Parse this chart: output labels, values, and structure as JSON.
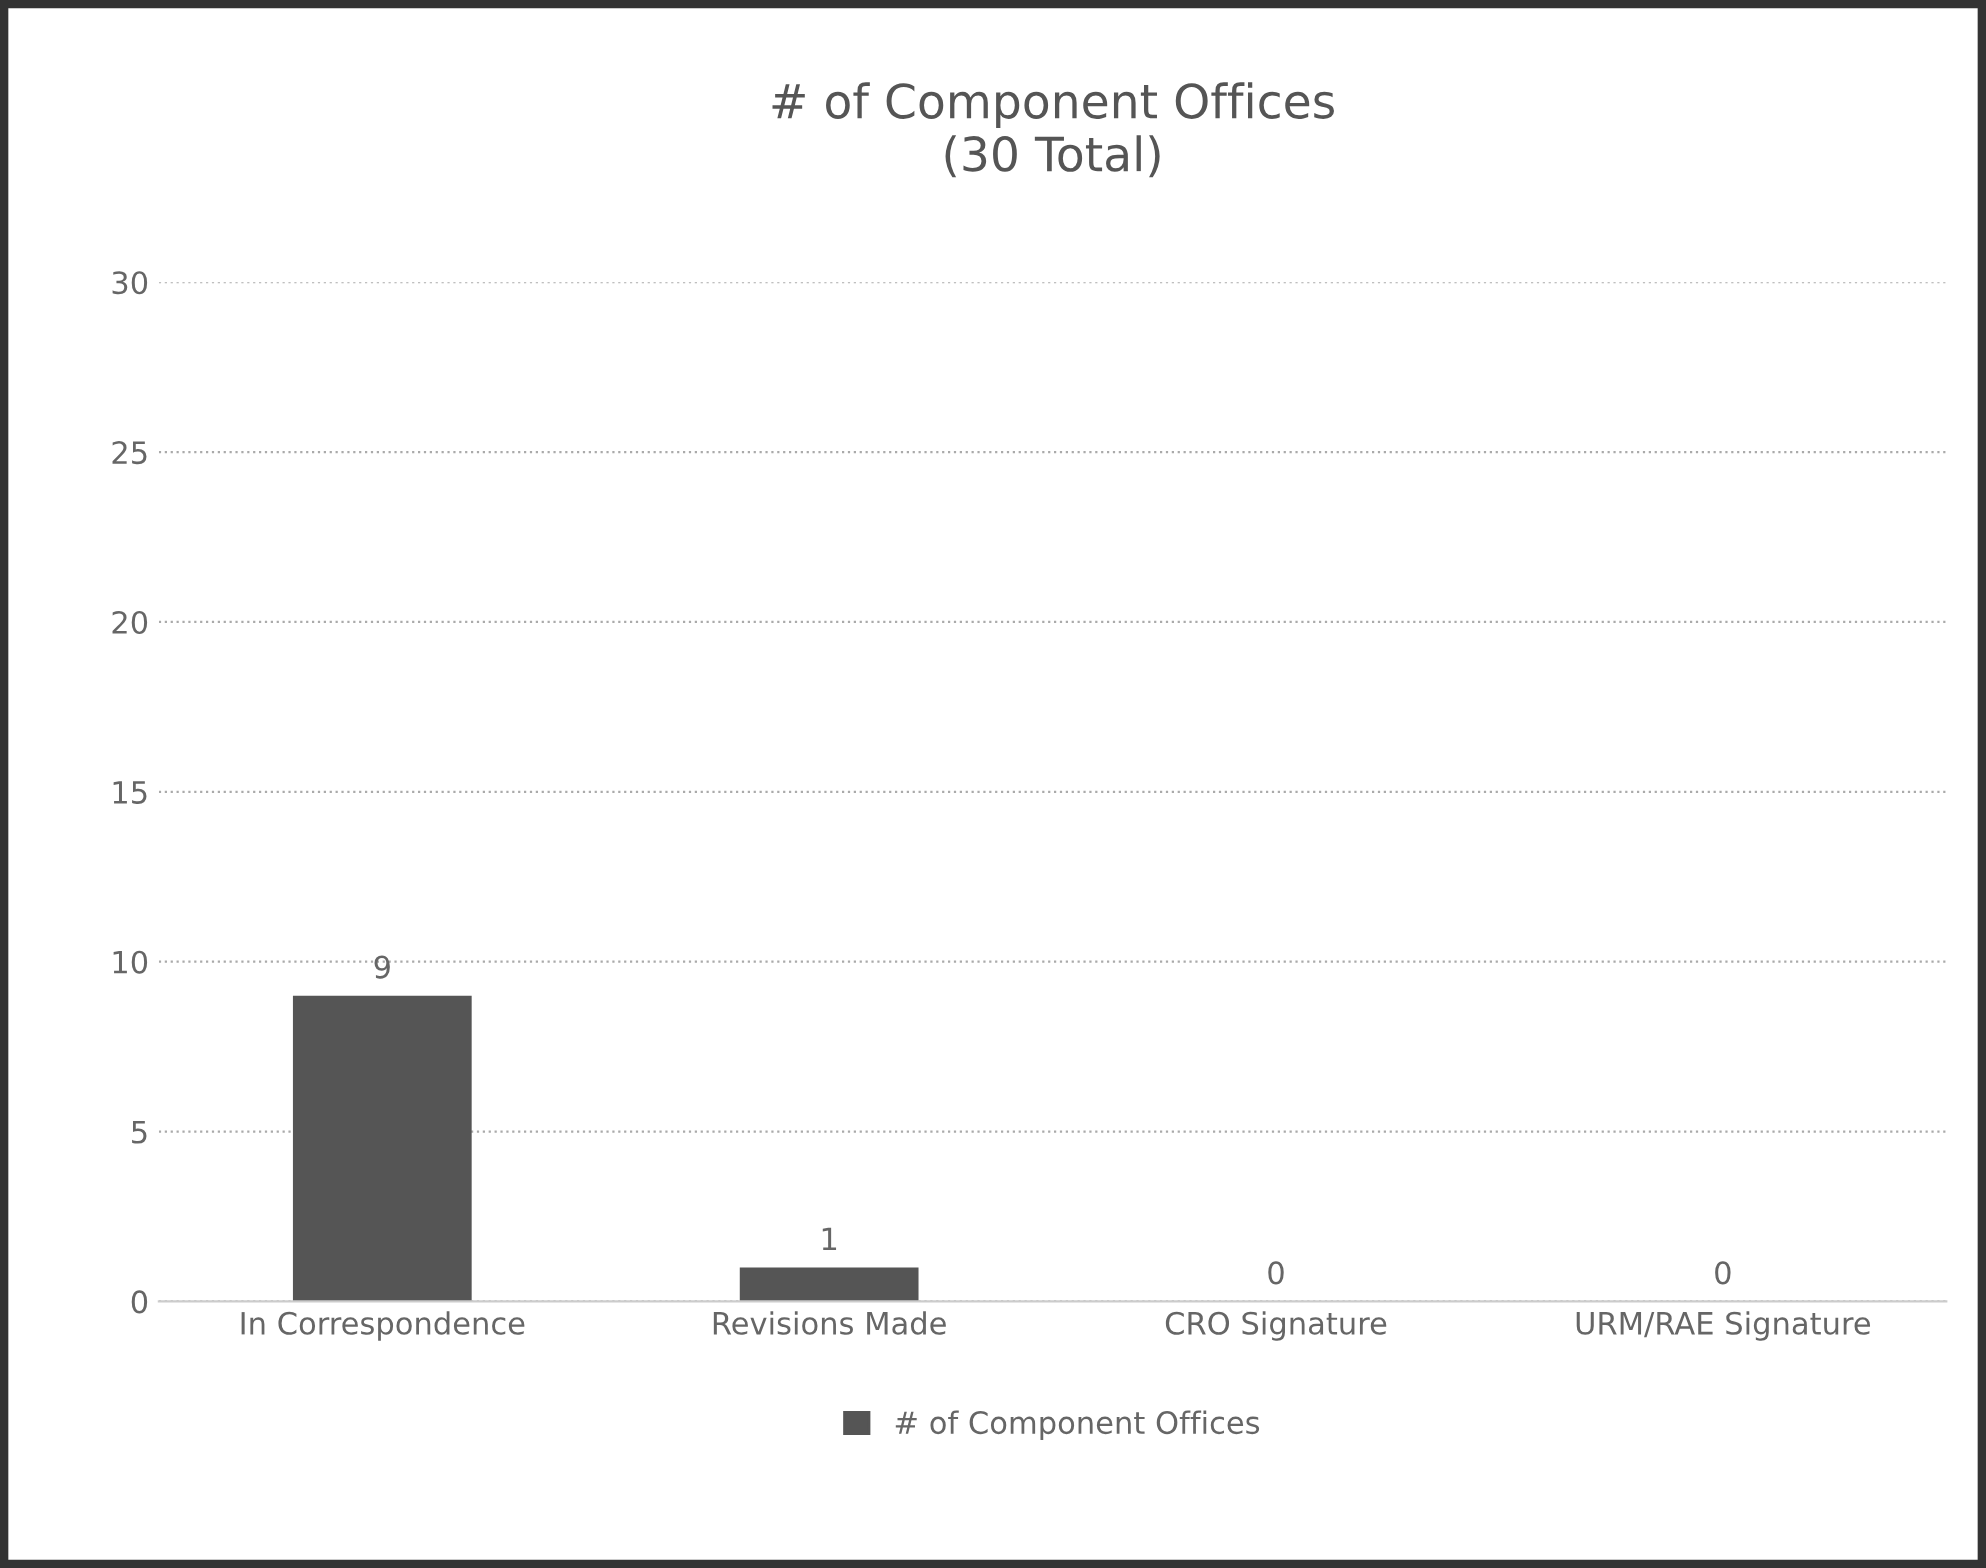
{
  "chart_data": {
    "type": "bar",
    "title": "# of Component Offices\n(30 Total)",
    "categories": [
      "In Correspondence",
      "Revisions Made",
      "CRO Signature",
      "URM/RAE Signature"
    ],
    "series": [
      {
        "name": "# of Component Offices",
        "color": "#555555",
        "values": [
          9,
          1,
          0,
          0
        ]
      }
    ],
    "ylim": [
      0,
      30
    ],
    "yticks": [
      0,
      5,
      10,
      15,
      20,
      25,
      30
    ],
    "grid": "y",
    "legend": "bottom",
    "data_labels": true
  }
}
